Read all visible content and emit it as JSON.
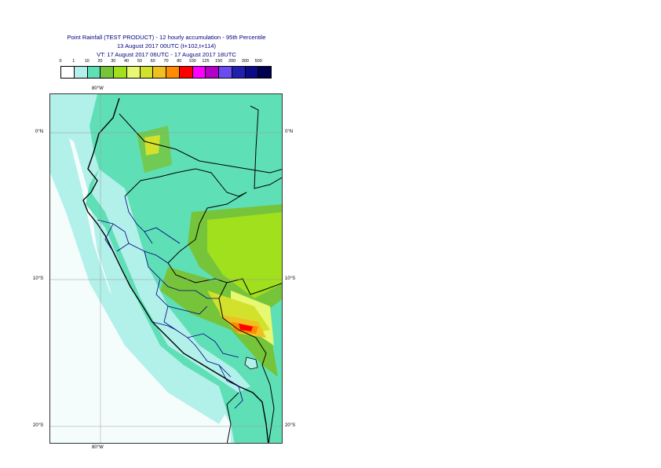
{
  "header": {
    "title": "Point Rainfall (TEST PRODUCT) - 12 hourly accumulation - 95th Percentile",
    "base_time": "13 August 2017 00UTC (t+102,t+114)",
    "valid_time": "VT: 17 August 2017 06UTC - 17 August 2017 18UTC"
  },
  "legend": {
    "ticks": [
      "0",
      "1",
      "10",
      "20",
      "30",
      "40",
      "50",
      "60",
      "70",
      "80",
      "100",
      "125",
      "150",
      "200",
      "300",
      "500"
    ],
    "colors": [
      "#ffffff",
      "#b2f0ea",
      "#5fdfb6",
      "#76c43a",
      "#a0e01c",
      "#e8f870",
      "#d2e22c",
      "#f0c020",
      "#ff8c00",
      "#ff0000",
      "#ff00ff",
      "#b200c8",
      "#6a4cf0",
      "#2020b0",
      "#0b0b8a",
      "#000050"
    ]
  },
  "map": {
    "lon_labels_top": [
      "80°W"
    ],
    "lon_labels_bottom": [
      "80°W"
    ],
    "lat_labels_left": [
      "0°N",
      "10°S",
      "20°S"
    ],
    "lat_labels_right": [
      "0°N",
      "10°S",
      "20°S"
    ],
    "ocean_color": "#b2f0ea",
    "land_color": "#5fdfb6",
    "border_color": "#000080",
    "coast_color": "#000000"
  }
}
